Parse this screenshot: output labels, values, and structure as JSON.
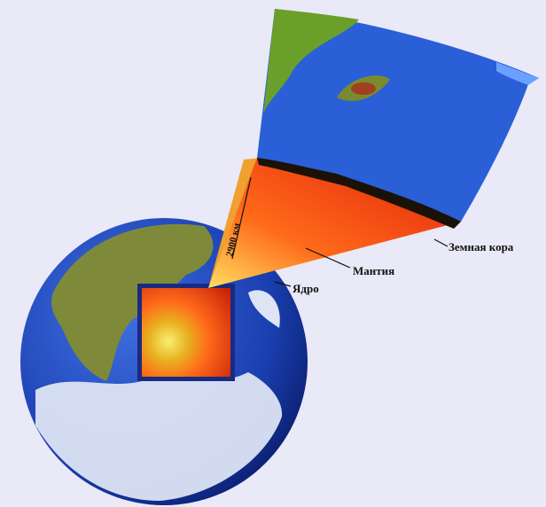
{
  "labels": {
    "crust": "Земная кора",
    "mantle": "Мантия",
    "core": "Ядро",
    "depth": "2900 км"
  }
}
